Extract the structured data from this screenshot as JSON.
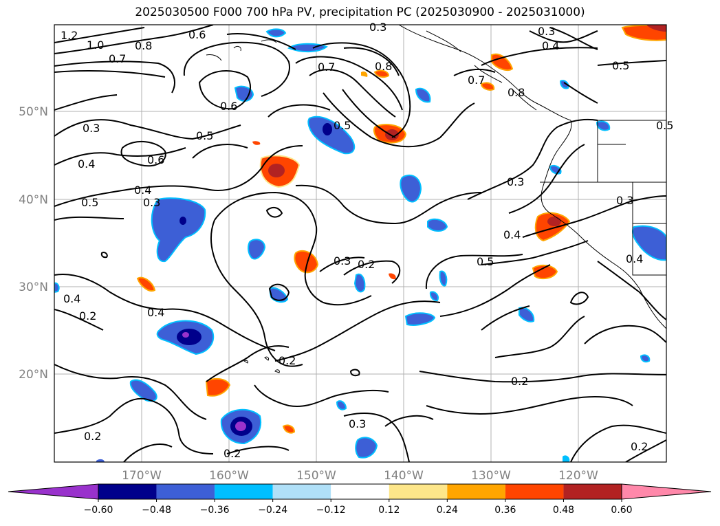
{
  "title": "2025030500 F000 700 hPa PV, precipitation PC (2025030900 - 2025031000)",
  "map": {
    "lon_labels": [
      "170°W",
      "160°W",
      "150°W",
      "140°W",
      "130°W",
      "120°W"
    ],
    "lat_labels": [
      "50°N",
      "40°N",
      "30°N",
      "20°N"
    ],
    "contour_labels": [
      "1.2",
      "1.0",
      "0.7",
      "0.8",
      "0.6",
      "0.3",
      "0.4",
      "0.5",
      "0.3",
      "0.4",
      "0.6",
      "0.5",
      "0.4",
      "0.5",
      "0.7",
      "0.6",
      "0.8",
      "0.8",
      "0.7",
      "0.3",
      "0.4",
      "0.3",
      "0.5",
      "0.3",
      "0.2",
      "0.5",
      "0.4",
      "0.2",
      "0.2",
      "0.2",
      "0.3",
      "0.2",
      "0.2",
      "0.2",
      "0.3",
      "0.4",
      "0.4",
      "0.5",
      "0.3"
    ]
  },
  "colorbar": {
    "ticks": [
      "−0.60",
      "−0.48",
      "−0.36",
      "−0.24",
      "−0.12",
      "0.12",
      "0.24",
      "0.36",
      "0.48",
      "0.60"
    ],
    "colors": [
      "#9932cc",
      "#00008b",
      "#3d5fd6",
      "#00bfff",
      "#b0e0f8",
      "#ffffff",
      "#fde68a",
      "#ffa500",
      "#ff4500",
      "#b22222",
      "#ff88aa",
      "#ff88aa"
    ]
  }
}
